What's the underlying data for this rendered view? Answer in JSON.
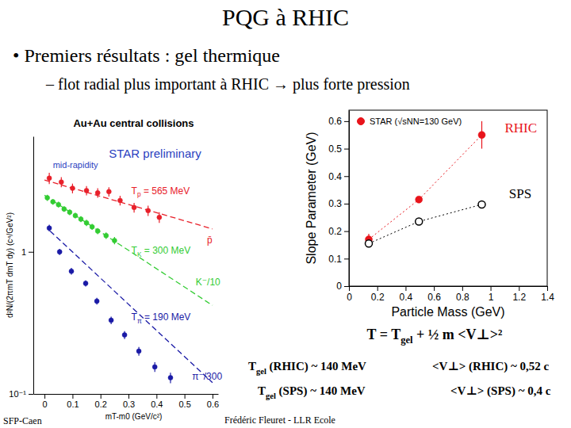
{
  "slide": {
    "title": "PQG à RHIC",
    "bullet": "• Premiers résultats : gel thermique",
    "sub_bullet": "– flot radial plus important à RHIC → plus forte pression",
    "formula": [
      {
        "text": "T = T"
      },
      {
        "text": "gel",
        "sub": true
      },
      {
        "text": " + ½ m <V⊥>²"
      }
    ],
    "results": [
      [
        {
          "text": "T"
        },
        {
          "text": "gel",
          "sub": true
        },
        {
          "text": " (RHIC) ~ 140 MeV"
        }
      ],
      [
        {
          "text": "<V⊥> (RHIC) ~ 0,52 c"
        }
      ],
      [
        {
          "text": "T"
        },
        {
          "text": "gel",
          "sub": true
        },
        {
          "text": " (SPS) ~ 140 MeV"
        }
      ],
      [
        {
          "text": "<V⊥> (SPS) ~ 0,4 c"
        }
      ]
    ],
    "footer_left": "SFP-Caen",
    "footer_center": "Frédéric Fleuret - LLR Ecole"
  },
  "chart_data": [
    {
      "type": "scatter",
      "title": "Au+Au central collisions",
      "x_label": "mT-m0 (GeV/c²)",
      "y_label": "d²N/(2πmT dmT dy) (c⁴/GeV²)",
      "log": "y",
      "xlim": [
        -0.04,
        0.62
      ],
      "xticks": [
        0,
        0.1,
        0.2,
        0.3,
        0.4,
        0.5,
        0.6
      ],
      "ylim": [
        0.1,
        6.5
      ],
      "yticks": [
        {
          "value": 0.1,
          "label": "10⁻¹"
        },
        1
      ],
      "series": [
        {
          "color": "#e8202a",
          "marker": "circle",
          "x": [
            0.017,
            0.06,
            0.1,
            0.15,
            0.19,
            0.23,
            0.27,
            0.32,
            0.37,
            0.41
          ],
          "values": [
            3.3,
            3.1,
            2.8,
            2.7,
            2.6,
            2.65,
            2.3,
            2.05,
            1.95,
            1.75
          ],
          "errors": [
            0.3,
            0.25,
            0.22,
            0.2,
            0.2,
            0.2,
            0.18,
            0.16,
            0.16,
            0.15
          ]
        },
        {
          "color": "#33cc33",
          "marker": "circle",
          "x": [
            0.01,
            0.03,
            0.05,
            0.07,
            0.09,
            0.11,
            0.13,
            0.15,
            0.17,
            0.19,
            0.22,
            0.25
          ],
          "values": [
            2.4,
            2.25,
            2.15,
            2.0,
            1.9,
            1.8,
            1.7,
            1.6,
            1.5,
            1.4,
            1.3,
            1.2
          ],
          "errors": [
            0.12,
            0.1,
            0.1,
            0.09,
            0.09,
            0.08,
            0.08,
            0.08,
            0.07,
            0.07,
            0.07,
            0.07
          ]
        },
        {
          "color": "#1a1aa6",
          "marker": "circle",
          "x": [
            0.017,
            0.054,
            0.096,
            0.147,
            0.187,
            0.238,
            0.286,
            0.337,
            0.394,
            0.45
          ],
          "values": [
            1.47,
            1.0,
            0.73,
            0.6,
            0.45,
            0.33,
            0.26,
            0.2,
            0.155,
            0.13
          ],
          "errors": [
            0.08,
            0.05,
            0.04,
            0.03,
            0.025,
            0.02,
            0.017,
            0.014,
            0.012,
            0.011
          ]
        },
        {
          "type": "line",
          "line_style": "dashed",
          "color": "#e8202a",
          "x": [
            0,
            0.6
          ],
          "values": [
            3.2,
            1.45
          ]
        },
        {
          "type": "line",
          "line_style": "dashed",
          "color": "#33cc33",
          "x": [
            0,
            0.6
          ],
          "values": [
            2.5,
            0.42
          ]
        },
        {
          "type": "line",
          "line_style": "dashed",
          "color": "#1a1aa6",
          "x": [
            0.02,
            0.6
          ],
          "values": [
            1.4,
            0.12
          ]
        }
      ],
      "annotations": [
        {
          "text": "STAR preliminary",
          "x": 0.23,
          "y": 4.6,
          "color": "#2a3fbf"
        },
        {
          "text": "mid-rapidity",
          "x": 0.03,
          "y": 3.9,
          "color": "#2a3fbf"
        },
        {
          "text": [
            {
              "text": "T"
            },
            {
              "text": "p",
              "sub": true
            },
            {
              "text": " = 565 MeV"
            }
          ],
          "x": 0.31,
          "y": 2.55,
          "color": "#e8202a"
        },
        {
          "text": [
            {
              "text": "T"
            },
            {
              "text": "K",
              "sub": true
            },
            {
              "text": " = 300 MeV"
            }
          ],
          "x": 0.31,
          "y": 0.97,
          "color": "#33cc33"
        },
        {
          "text": [
            {
              "text": "T"
            },
            {
              "text": "π",
              "sub": true
            },
            {
              "text": " = 190 MeV"
            }
          ],
          "x": 0.31,
          "y": 0.33,
          "color": "#1a1aa6"
        },
        {
          "text": "p̄",
          "x": 0.58,
          "y": 1.15,
          "color": "#e8202a"
        },
        {
          "text": "K⁻/10",
          "x": 0.54,
          "y": 0.58,
          "color": "#33cc33"
        },
        {
          "text": "π⁻/300",
          "x": 0.527,
          "y": 0.126,
          "color": "#1a1aa6"
        }
      ]
    },
    {
      "type": "scatter",
      "x_label": "Particle Mass (GeV)",
      "y_label": "Slope Parameter (GeV)",
      "xlim": [
        0,
        1.4
      ],
      "xticks": [
        0,
        0.2,
        0.4,
        0.6,
        0.8,
        1,
        1.2,
        1.4
      ],
      "ylim": [
        0,
        0.64
      ],
      "yticks": [
        0,
        0.1,
        0.2,
        0.3,
        0.4,
        0.5,
        0.6
      ],
      "legend": "top-left",
      "series": [
        {
          "name": "STAR (√sNN=130 GeV)",
          "color": "#e8141b",
          "marker": "circle",
          "line_style": "dotted",
          "x": [
            0.14,
            0.494,
            0.938
          ],
          "values": [
            0.17,
            0.315,
            0.55
          ],
          "errors": [
            0.02,
            0.01,
            0.05
          ]
        },
        {
          "color": "#000000",
          "marker": "open-circle",
          "line_style": "dotted",
          "x": [
            0.14,
            0.494,
            0.938
          ],
          "values": [
            0.155,
            0.235,
            0.297
          ]
        }
      ],
      "annotations": [
        {
          "text": "RHIC",
          "x": 1.1,
          "y": 0.56,
          "color": "#e8141b"
        },
        {
          "text": "SPS",
          "x": 1.13,
          "y": 0.32,
          "color": "#000000"
        }
      ]
    }
  ]
}
